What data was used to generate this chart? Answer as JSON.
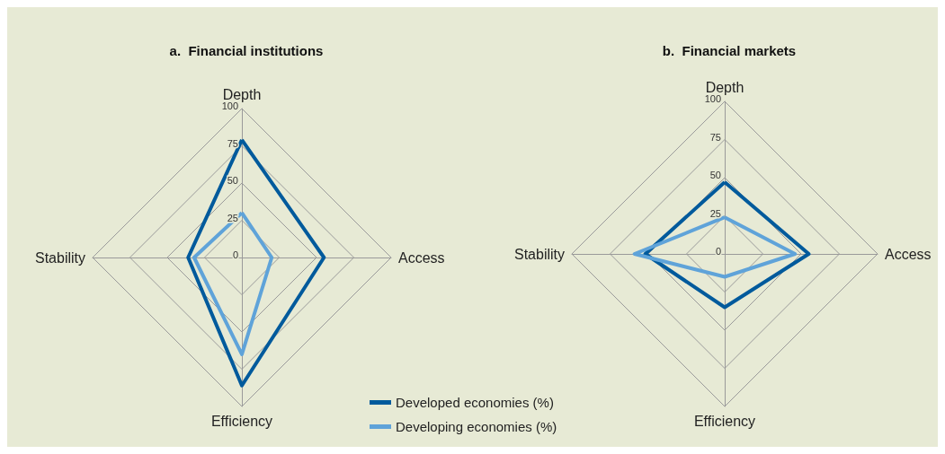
{
  "chart_data": [
    {
      "type": "radar",
      "title": "a.  Financial institutions",
      "categories": [
        "Depth",
        "Access",
        "Efficiency",
        "Stability"
      ],
      "ylim": [
        0,
        100
      ],
      "yticks": [
        0,
        25,
        50,
        75,
        100
      ],
      "legend": "bottom right",
      "series": [
        {
          "name": "Developed economies (%)",
          "color": "#005a9c",
          "values": [
            79,
            55,
            86,
            36
          ]
        },
        {
          "name": "Developing economies (%)",
          "color": "#5fa3d9",
          "values": [
            30,
            20,
            65,
            32
          ]
        }
      ]
    },
    {
      "type": "radar",
      "title": "b.  Financial markets",
      "categories": [
        "Depth",
        "Access",
        "Efficiency",
        "Stability"
      ],
      "ylim": [
        0,
        100
      ],
      "yticks": [
        0,
        25,
        50,
        75,
        100
      ],
      "legend": false,
      "series": [
        {
          "color": "#005a9c",
          "values": [
            47,
            55,
            35,
            52
          ]
        },
        {
          "color": "#5fa3d9",
          "values": [
            24,
            46,
            15,
            59
          ]
        }
      ]
    }
  ]
}
